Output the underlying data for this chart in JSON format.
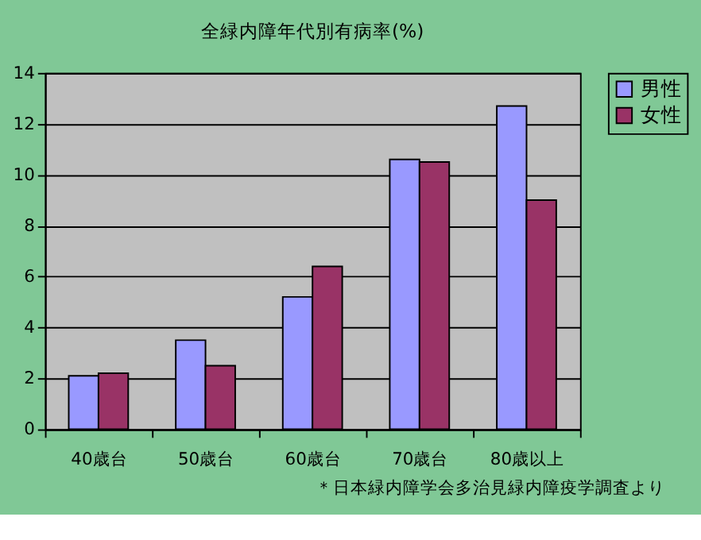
{
  "chart_data": {
    "type": "bar",
    "title": "全緑内障年代別有病率(%)",
    "categories": [
      "40歳台",
      "50歳台",
      "60歳台",
      "70歳台",
      "80歳以上"
    ],
    "series": [
      {
        "name": "男性",
        "color": "#9999ff",
        "values": [
          2.1,
          3.5,
          5.2,
          10.6,
          12.7
        ]
      },
      {
        "name": "女性",
        "color": "#993366",
        "values": [
          2.2,
          2.5,
          6.4,
          10.5,
          9.0
        ]
      }
    ],
    "ylim": [
      0,
      14
    ],
    "yticks": [
      0,
      2,
      4,
      6,
      8,
      10,
      12,
      14
    ],
    "grid": "y",
    "legend": "right",
    "annotations": [
      "＊日本緑内障学会多治見緑内障疫学調査より"
    ]
  }
}
